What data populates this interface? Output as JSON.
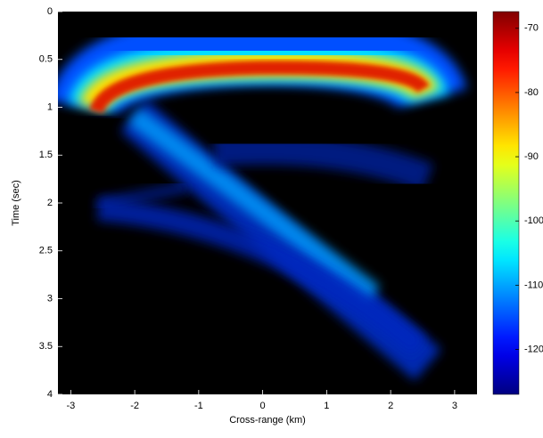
{
  "chart_data": {
    "type": "heatmap",
    "xlabel": "Cross-range (km)",
    "ylabel": "Time (sec)",
    "xlim": [
      -3.2,
      3.35
    ],
    "xticks": [
      -3,
      -2,
      -1,
      0,
      1,
      2,
      3
    ],
    "ylim": [
      0,
      4
    ],
    "yticks": [
      0,
      0.5,
      1,
      1.5,
      2,
      2.5,
      3,
      3.5,
      4
    ],
    "y_reversed": true,
    "colormap": "jet",
    "clim": [
      -127,
      -67.4
    ],
    "cticks": [
      -120,
      -110,
      -100,
      -90,
      -80,
      -70
    ]
  }
}
